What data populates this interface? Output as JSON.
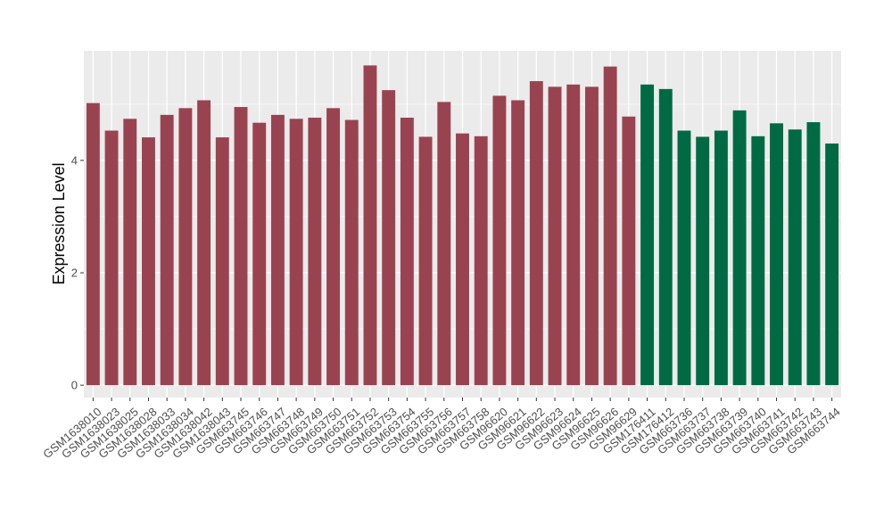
{
  "chart_data": {
    "type": "bar",
    "title": "",
    "xlabel": "",
    "ylabel": "Expression Level",
    "ylim": [
      -0.22,
      5.95
    ],
    "yticks": [
      0,
      2,
      4
    ],
    "grid": true,
    "legend": "none",
    "colors": {
      "group_a": "#9a4350",
      "group_b": "#006a45",
      "panel": "#ebebeb",
      "grid": "#ffffff",
      "tick_text": "#4d4d4d"
    },
    "categories": [
      "GSM1638010",
      "GSM1638023",
      "GSM1638025",
      "GSM1638028",
      "GSM1638033",
      "GSM1638034",
      "GSM1638042",
      "GSM1638043",
      "GSM663745",
      "GSM663746",
      "GSM663747",
      "GSM663748",
      "GSM663749",
      "GSM663750",
      "GSM663751",
      "GSM663752",
      "GSM663753",
      "GSM663754",
      "GSM663755",
      "GSM663756",
      "GSM663757",
      "GSM663758",
      "GSM96620",
      "GSM96621",
      "GSM96622",
      "GSM96623",
      "GSM96624",
      "GSM96625",
      "GSM96626",
      "GSM96629",
      "GSM176411",
      "GSM176412",
      "GSM663736",
      "GSM663737",
      "GSM663738",
      "GSM663739",
      "GSM663740",
      "GSM663741",
      "GSM663742",
      "GSM663743",
      "GSM663744"
    ],
    "values": [
      5.02,
      4.53,
      4.74,
      4.41,
      4.81,
      4.93,
      5.07,
      4.41,
      4.95,
      4.67,
      4.81,
      4.74,
      4.76,
      4.93,
      4.72,
      5.69,
      5.25,
      4.76,
      4.42,
      5.04,
      4.48,
      4.43,
      5.15,
      5.07,
      5.41,
      5.31,
      5.35,
      5.31,
      5.67,
      4.78,
      5.35,
      5.27,
      4.53,
      4.42,
      4.53,
      4.89,
      4.43,
      4.66,
      4.55,
      4.68,
      4.3
    ],
    "groups": [
      "a",
      "a",
      "a",
      "a",
      "a",
      "a",
      "a",
      "a",
      "a",
      "a",
      "a",
      "a",
      "a",
      "a",
      "a",
      "a",
      "a",
      "a",
      "a",
      "a",
      "a",
      "a",
      "a",
      "a",
      "a",
      "a",
      "a",
      "a",
      "a",
      "a",
      "b",
      "b",
      "b",
      "b",
      "b",
      "b",
      "b",
      "b",
      "b",
      "b",
      "b"
    ]
  }
}
